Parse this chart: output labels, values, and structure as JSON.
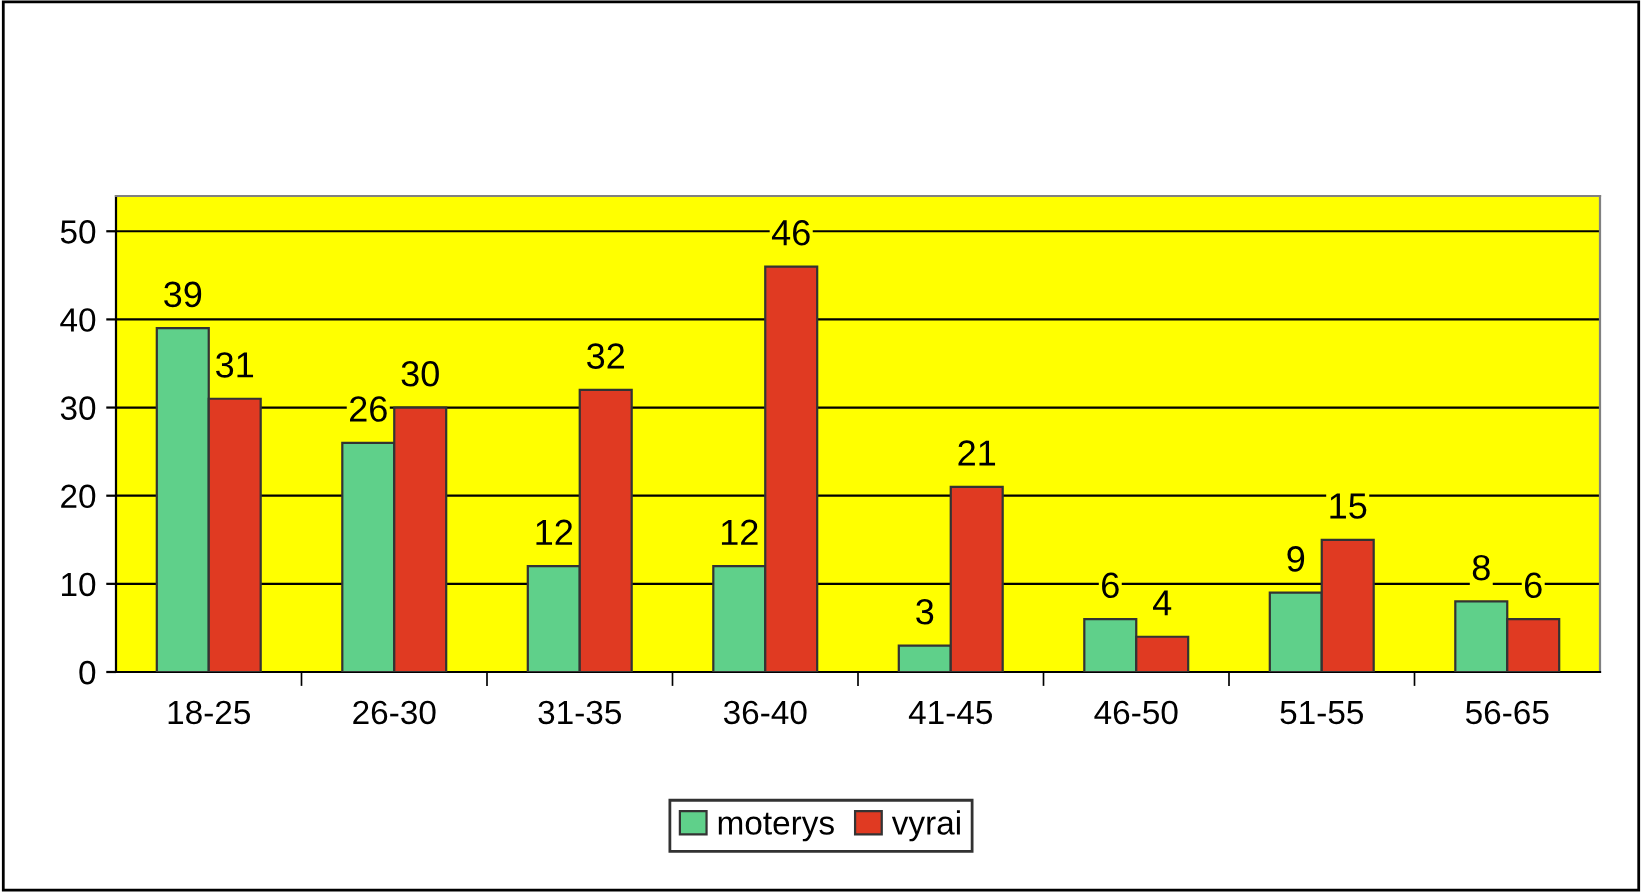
{
  "chart_data": {
    "type": "bar",
    "categories": [
      "18-25",
      "26-30",
      "31-35",
      "36-40",
      "41-45",
      "46-50",
      "51-55",
      "56-65"
    ],
    "series": [
      {
        "name": "moterys",
        "color": "#5fd08a",
        "values": [
          39,
          26,
          12,
          12,
          3,
          6,
          9,
          8
        ]
      },
      {
        "name": "vyrai",
        "color": "#e03a22",
        "values": [
          31,
          30,
          32,
          46,
          21,
          4,
          15,
          6
        ]
      }
    ],
    "ylim": [
      0,
      54
    ],
    "yticks": [
      0,
      10,
      20,
      30,
      40,
      50
    ],
    "grid": "y",
    "legend": "bottom",
    "data_labels": true
  }
}
